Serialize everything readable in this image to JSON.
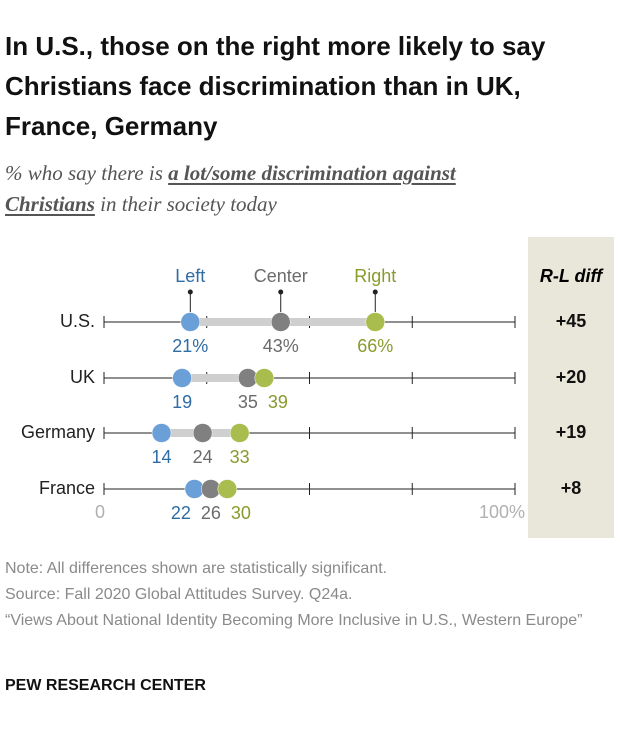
{
  "chart_data": {
    "type": "dot",
    "title": "In U.S., those on the right more likely to say Christians face discrimination than in UK, France, Germany",
    "subtitle_parts": [
      "% who say there is ",
      "a lot/some discrimination against Christians",
      " in their society today"
    ],
    "categories": [
      "U.S.",
      "UK",
      "Germany",
      "France"
    ],
    "series": [
      {
        "name": "Left",
        "color": "#6b9fd8",
        "label_color": "#2e6ca4",
        "values": [
          21,
          19,
          14,
          22
        ],
        "value_labels": [
          "21%",
          "19",
          "14",
          "22"
        ]
      },
      {
        "name": "Center",
        "color": "#808080",
        "label_color": "#6b6b6b",
        "values": [
          43,
          35,
          24,
          26
        ],
        "value_labels": [
          "43%",
          "35",
          "24",
          "26"
        ]
      },
      {
        "name": "Right",
        "color": "#a9bd4f",
        "label_color": "#8a9a2c",
        "values": [
          66,
          39,
          33,
          30
        ],
        "value_labels": [
          "66%",
          "39",
          "33",
          "30"
        ]
      }
    ],
    "diff_header": "R-L diff",
    "diff_values": [
      45,
      20,
      19,
      8
    ],
    "diff_labels": [
      "+45",
      "+20",
      "+19",
      "+8"
    ],
    "xlim": [
      0,
      100
    ],
    "xticks": [
      0,
      {
        "value": 100,
        "label": "100%"
      }
    ],
    "minor_xticks": [
      25,
      50,
      75
    ],
    "notes": [
      "Note: All differences shown are statistically significant.",
      "Source: Fall 2020 Global Attitudes Survey. Q24a.",
      "“Views About National Identity Becoming More Inclusive in U.S., Western Europe”"
    ],
    "footer": "PEW RESEARCH CENTER"
  }
}
